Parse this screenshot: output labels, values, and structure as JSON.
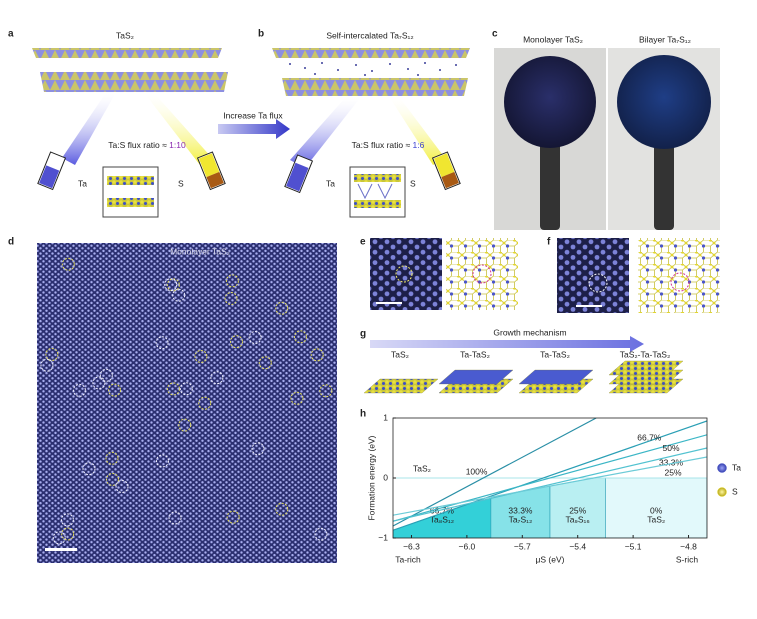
{
  "panel_a": {
    "label": "a",
    "title": "TaS₂",
    "flux_text": "Ta:S flux ratio ≈ ",
    "flux_ratio": "1:10",
    "source_ta": "Ta",
    "source_s": "S"
  },
  "arrow_label": "Increase Ta flux",
  "panel_b": {
    "label": "b",
    "title": "Self-intercalated Ta₇S₁₂",
    "flux_text": "Ta:S flux ratio ≈ ",
    "flux_ratio": "1:6",
    "source_ta": "Ta",
    "source_s": "S"
  },
  "panel_c": {
    "label": "c",
    "left_caption": "Monolayer TaS₂",
    "right_caption": "Bilayer Ta₇S₁₂"
  },
  "panel_d": {
    "label": "d",
    "caption": "Monolayer TaS₂"
  },
  "panel_e": {
    "label": "e"
  },
  "panel_f": {
    "label": "f"
  },
  "panel_g": {
    "label": "g",
    "title": "Growth mechanism",
    "stages": [
      "TaS₂",
      "Ta-TaS₂",
      "Ta-TaS₂",
      "TaS₂-Ta-TaS₂"
    ]
  },
  "chart_data": {
    "type": "line",
    "label": "h",
    "xlabel": "μS (eV)",
    "ylabel": "Formation energy (eV)",
    "x_left_note": "Ta-rich",
    "x_right_note": "S-rich",
    "xlim": [
      -6.4,
      -4.7
    ],
    "ylim": [
      -1,
      1
    ],
    "xticks": [
      {
        "value": -6.3,
        "label": "−6.3"
      },
      {
        "value": -6.0,
        "label": "−6.0"
      },
      {
        "value": -5.7,
        "label": "−5.7"
      },
      {
        "value": -5.4,
        "label": "−5.4"
      },
      {
        "value": -5.1,
        "label": "−5.1"
      },
      {
        "value": -4.8,
        "label": "−4.8"
      }
    ],
    "yticks": [
      {
        "value": -1,
        "label": "−1"
      },
      0,
      1
    ],
    "reference_label": "TaS₂",
    "series": [
      {
        "name": "100%",
        "color": "#2a8fa6",
        "x": [
          -6.4,
          -5.3
        ],
        "values": [
          -0.8,
          1
        ]
      },
      {
        "name": "66.7%",
        "color": "#2a9fb5",
        "x": [
          -6.4,
          -4.7
        ],
        "values": [
          -0.87,
          0.95
        ]
      },
      {
        "name": "50%",
        "color": "#3bb6c6",
        "x": [
          -6.4,
          -4.7
        ],
        "values": [
          -0.72,
          0.72
        ]
      },
      {
        "name": "33.3%",
        "color": "#52c2d0",
        "x": [
          -6.4,
          -4.7
        ],
        "values": [
          -0.72,
          0.5
        ]
      },
      {
        "name": "25%",
        "color": "#6ccbd7",
        "x": [
          -6.4,
          -4.7
        ],
        "values": [
          -0.62,
          0.35
        ]
      }
    ],
    "regions": [
      {
        "name": "66.7%",
        "phase": "Ta₈S₁₂",
        "x": [
          -6.4,
          -5.87
        ],
        "color": "#33d0d8"
      },
      {
        "name": "33.3%",
        "phase": "Ta₇S₁₂",
        "x": [
          -5.87,
          -5.55
        ],
        "color": "#86e2e8"
      },
      {
        "name": "25%",
        "phase": "Ta₉S₁₆",
        "x": [
          -5.55,
          -5.25
        ],
        "color": "#b9eff2"
      },
      {
        "name": "0%",
        "phase": "TaS₂",
        "x": [
          -5.25,
          -4.7
        ],
        "color": "#e2f9fb"
      }
    ],
    "legend": [
      {
        "name": "Ta",
        "color": "#4a55c8"
      },
      {
        "name": "S",
        "color": "#e3d630"
      }
    ]
  }
}
